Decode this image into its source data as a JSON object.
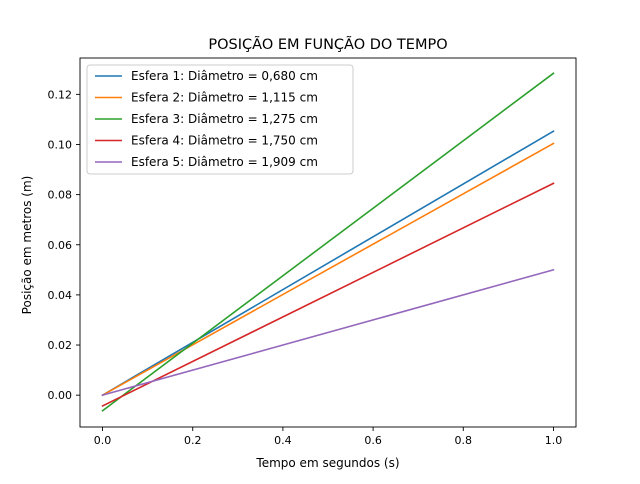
{
  "chart_data": {
    "type": "line",
    "title": "POSIÇÃO EM FUNÇÃO DO TEMPO",
    "xlabel": "Tempo em segundos (s)",
    "ylabel": "Posição em metros (m)",
    "xlim": [
      -0.05,
      1.05
    ],
    "ylim": [
      -0.0127,
      0.1345
    ],
    "x_ticks": [
      0.0,
      0.2,
      0.4,
      0.6,
      0.8,
      1.0
    ],
    "x_tick_labels": [
      "0.0",
      "0.2",
      "0.4",
      "0.6",
      "0.8",
      "1.0"
    ],
    "y_ticks": [
      0.0,
      0.02,
      0.04,
      0.06,
      0.08,
      0.1,
      0.12
    ],
    "y_tick_labels": [
      "0.00",
      "0.02",
      "0.04",
      "0.06",
      "0.08",
      "0.10",
      "0.12"
    ],
    "grid": false,
    "legend_position": "upper-left",
    "series": [
      {
        "name": "Esfera 1: Diâmetro = 0,680 cm",
        "color": "#1f77b4",
        "x": [
          0.0,
          1.0
        ],
        "y": [
          0.0,
          0.1053
        ]
      },
      {
        "name": "Esfera 2: Diâmetro = 1,115 cm",
        "color": "#ff7f0e",
        "x": [
          0.0,
          1.0
        ],
        "y": [
          0.0,
          0.1004
        ]
      },
      {
        "name": "Esfera 3: Diâmetro = 1,275 cm",
        "color": "#2ca02c",
        "x": [
          0.0,
          1.0
        ],
        "y": [
          -0.0062,
          0.1284
        ]
      },
      {
        "name": "Esfera 4: Diâmetro = 1,750 cm",
        "color": "#d62728",
        "x": [
          0.0,
          1.0
        ],
        "y": [
          -0.0043,
          0.0845
        ]
      },
      {
        "name": "Esfera 5: Diâmetro = 1,909 cm",
        "color": "#9467bd",
        "x": [
          0.0,
          1.0
        ],
        "y": [
          0.0,
          0.05
        ]
      }
    ]
  }
}
